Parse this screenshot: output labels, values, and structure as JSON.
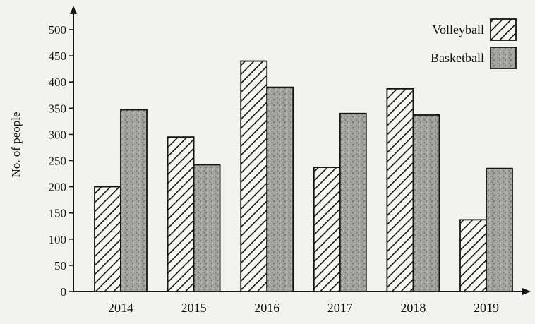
{
  "chart_data": {
    "type": "bar",
    "title": "",
    "xlabel": "",
    "ylabel": "No. of people",
    "categories": [
      "2014",
      "2015",
      "2016",
      "2017",
      "2018",
      "2019"
    ],
    "series": [
      {
        "name": "Volleyball",
        "values": [
          200,
          295,
          440,
          237,
          387,
          137
        ],
        "pattern": "hatch"
      },
      {
        "name": "Basketball",
        "values": [
          347,
          242,
          390,
          340,
          337,
          235
        ],
        "pattern": "speckled-gray"
      }
    ],
    "ylim": [
      0,
      500
    ],
    "yticks": [
      0,
      50,
      100,
      150,
      200,
      250,
      300,
      350,
      400,
      450,
      500
    ],
    "grid": false,
    "legend_position": "top-right",
    "colors": {
      "ink": "#151515",
      "background": "#f2f2ef",
      "basketball_fill": "#a3a3a0"
    }
  }
}
